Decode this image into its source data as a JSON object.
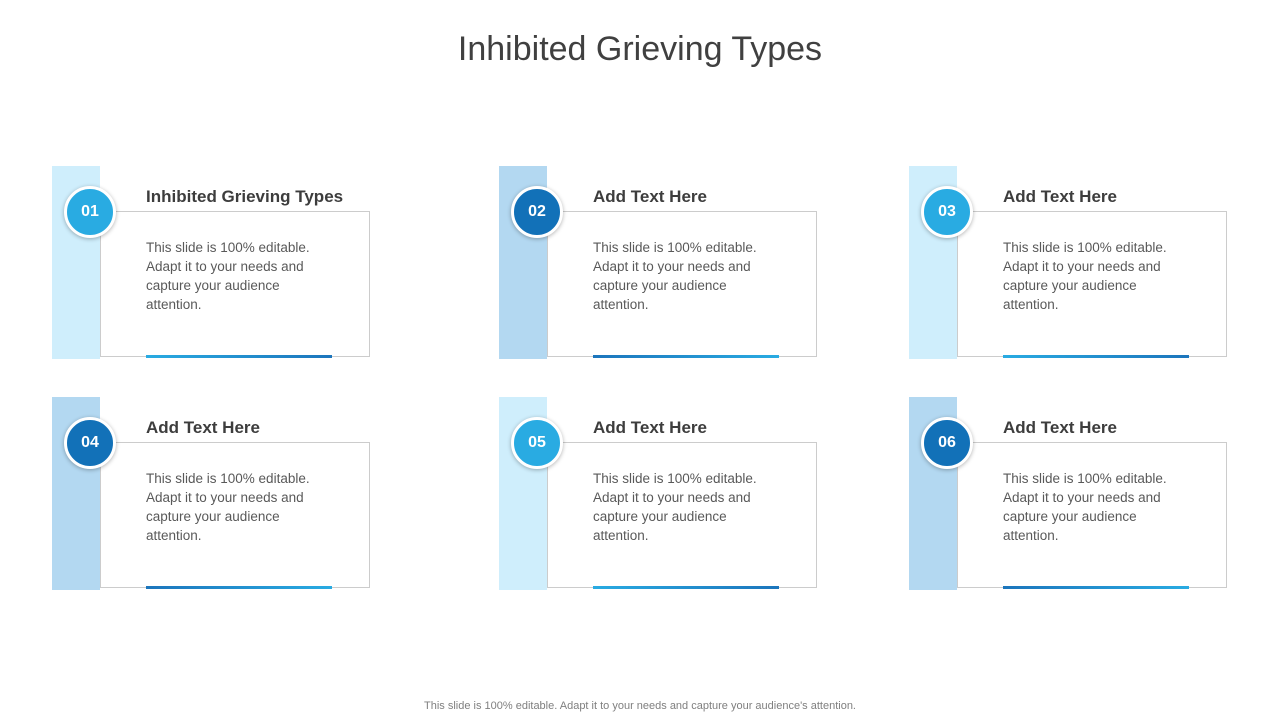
{
  "slide": {
    "title": "Inhibited Grieving Types",
    "footer": "This slide is 100% editable. Adapt it to your needs and capture your audience's attention."
  },
  "colors": {
    "title_text": "#404040",
    "heading_text": "#3d3d3d",
    "body_text": "#595959",
    "footer_text": "#7f7f7f",
    "box_border": "#cccccc",
    "cyan": "#29abe2",
    "dark_blue": "#1271b8",
    "light_cyan_bar": "#cfeefc",
    "light_blue_bar": "#b3d8f1"
  },
  "cards": [
    {
      "number": "01",
      "heading": "Inhibited Grieving Types",
      "body": "This slide is 100% editable. Adapt it to your needs and capture your audience attention.",
      "bar_color": "#cfeefc",
      "circle_color": "#29abe2",
      "line_gradient": "linear-gradient(90deg, #29abe2 0%, #1c75bc 100%)"
    },
    {
      "number": "02",
      "heading": "Add Text Here",
      "body": "This slide is 100% editable. Adapt it to your needs and capture your audience attention.",
      "bar_color": "#b3d8f1",
      "circle_color": "#1271b8",
      "line_gradient": "linear-gradient(90deg, #1c75bc 0%, #29abe2 100%)"
    },
    {
      "number": "03",
      "heading": "Add Text Here",
      "body": "This slide is 100% editable. Adapt it to your needs and capture your audience attention.",
      "bar_color": "#cfeefc",
      "circle_color": "#29abe2",
      "line_gradient": "linear-gradient(90deg, #29abe2 0%, #1c75bc 100%)"
    },
    {
      "number": "04",
      "heading": "Add Text Here",
      "body": "This slide is 100% editable. Adapt it to your needs and capture your audience attention.",
      "bar_color": "#b3d8f1",
      "circle_color": "#1271b8",
      "line_gradient": "linear-gradient(90deg, #1c75bc 0%, #29abe2 100%)"
    },
    {
      "number": "05",
      "heading": "Add Text Here",
      "body": "This slide is 100% editable. Adapt it to your needs and capture your audience attention.",
      "bar_color": "#cfeefc",
      "circle_color": "#29abe2",
      "line_gradient": "linear-gradient(90deg, #29abe2 0%, #1c75bc 100%)"
    },
    {
      "number": "06",
      "heading": "Add Text Here",
      "body": "This slide is 100% editable. Adapt it to your needs and capture your audience attention.",
      "bar_color": "#b3d8f1",
      "circle_color": "#1271b8",
      "line_gradient": "linear-gradient(90deg, #1c75bc 0%, #29abe2 100%)"
    }
  ]
}
